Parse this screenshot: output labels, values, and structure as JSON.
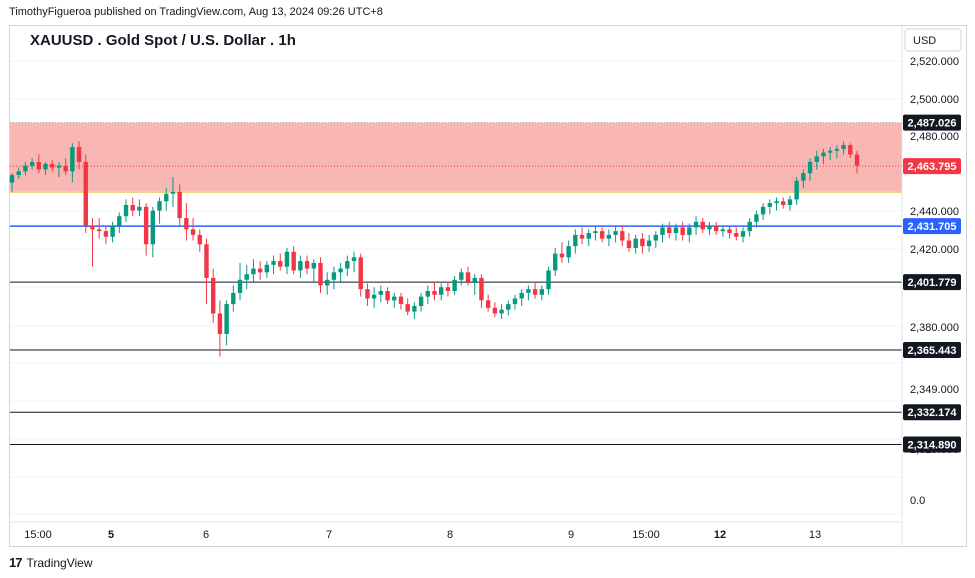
{
  "header": {
    "published_by": "TimothyFigueroa published on TradingView.com, Aug 13, 2024 09:26 UTC+8"
  },
  "footer": {
    "brand": "TradingView",
    "logo_glyph": "17"
  },
  "chart_data": {
    "type": "candlestick",
    "title": "XAUUSD . Gold Spot / U.S. Dollar . 1h",
    "currency": "USD",
    "colors": {
      "up": "#089981",
      "down": "#f23645",
      "zone": "#f7aaa6",
      "blue_line": "#2962ff",
      "black_line": "#131722",
      "yellow_line": "#e8b92a"
    },
    "y_ticks": [
      "2,520.000",
      "2,500.000",
      "2,480.000",
      "2,440.000",
      "2,420.000",
      "2,380.000",
      "2,349.000",
      "2,319.000",
      "0.0"
    ],
    "x_ticks": [
      "15:00",
      "5",
      "6",
      "7",
      "8",
      "9",
      "15:00",
      "12",
      "13"
    ],
    "bold_x_ticks": [
      "5",
      "12"
    ],
    "price_labels": [
      {
        "value": "2,487.026",
        "style": "black"
      },
      {
        "value": "2,463.795",
        "style": "red"
      },
      {
        "value": "2,431.705",
        "style": "blue"
      },
      {
        "value": "2,401.779",
        "style": "black"
      },
      {
        "value": "2,365.443",
        "style": "black"
      },
      {
        "value": "2,332.174",
        "style": "black"
      },
      {
        "value": "2,314.890",
        "style": "black"
      }
    ],
    "zone": {
      "top": 2487.026,
      "bottom": 2450.5
    },
    "last_price": 2463.795,
    "candles": [
      {
        "o": 2455,
        "h": 2460,
        "l": 2450,
        "c": 2459
      },
      {
        "o": 2459,
        "h": 2463,
        "l": 2457,
        "c": 2461
      },
      {
        "o": 2461,
        "h": 2466,
        "l": 2459,
        "c": 2464
      },
      {
        "o": 2464,
        "h": 2468,
        "l": 2462,
        "c": 2466
      },
      {
        "o": 2466,
        "h": 2470,
        "l": 2460,
        "c": 2462
      },
      {
        "o": 2462,
        "h": 2466,
        "l": 2459,
        "c": 2465
      },
      {
        "o": 2465,
        "h": 2467,
        "l": 2461,
        "c": 2463
      },
      {
        "o": 2463,
        "h": 2466,
        "l": 2458,
        "c": 2464
      },
      {
        "o": 2464,
        "h": 2468,
        "l": 2459,
        "c": 2461
      },
      {
        "o": 2461,
        "h": 2476,
        "l": 2455,
        "c": 2474
      },
      {
        "o": 2474,
        "h": 2477,
        "l": 2462,
        "c": 2466
      },
      {
        "o": 2466,
        "h": 2470,
        "l": 2428,
        "c": 2432
      },
      {
        "o": 2432,
        "h": 2436,
        "l": 2410,
        "c": 2430
      },
      {
        "o": 2430,
        "h": 2436,
        "l": 2425,
        "c": 2429
      },
      {
        "o": 2429,
        "h": 2432,
        "l": 2422,
        "c": 2426
      },
      {
        "o": 2426,
        "h": 2434,
        "l": 2423,
        "c": 2432
      },
      {
        "o": 2432,
        "h": 2439,
        "l": 2428,
        "c": 2437
      },
      {
        "o": 2437,
        "h": 2446,
        "l": 2434,
        "c": 2443
      },
      {
        "o": 2443,
        "h": 2447,
        "l": 2437,
        "c": 2440
      },
      {
        "o": 2440,
        "h": 2446,
        "l": 2437,
        "c": 2442
      },
      {
        "o": 2442,
        "h": 2444,
        "l": 2416,
        "c": 2422
      },
      {
        "o": 2422,
        "h": 2442,
        "l": 2415,
        "c": 2440
      },
      {
        "o": 2440,
        "h": 2447,
        "l": 2433,
        "c": 2445
      },
      {
        "o": 2445,
        "h": 2452,
        "l": 2440,
        "c": 2449
      },
      {
        "o": 2449,
        "h": 2458,
        "l": 2442,
        "c": 2450
      },
      {
        "o": 2450,
        "h": 2454,
        "l": 2432,
        "c": 2436
      },
      {
        "o": 2436,
        "h": 2444,
        "l": 2424,
        "c": 2430
      },
      {
        "o": 2430,
        "h": 2436,
        "l": 2424,
        "c": 2427
      },
      {
        "o": 2427,
        "h": 2430,
        "l": 2418,
        "c": 2422
      },
      {
        "o": 2422,
        "h": 2425,
        "l": 2390,
        "c": 2404
      },
      {
        "o": 2404,
        "h": 2409,
        "l": 2380,
        "c": 2385
      },
      {
        "o": 2385,
        "h": 2392,
        "l": 2362,
        "c": 2374
      },
      {
        "o": 2374,
        "h": 2392,
        "l": 2368,
        "c": 2390
      },
      {
        "o": 2390,
        "h": 2400,
        "l": 2386,
        "c": 2396
      },
      {
        "o": 2396,
        "h": 2412,
        "l": 2392,
        "c": 2403
      },
      {
        "o": 2403,
        "h": 2411,
        "l": 2398,
        "c": 2406
      },
      {
        "o": 2406,
        "h": 2414,
        "l": 2402,
        "c": 2409
      },
      {
        "o": 2409,
        "h": 2413,
        "l": 2403,
        "c": 2407
      },
      {
        "o": 2407,
        "h": 2413,
        "l": 2404,
        "c": 2411
      },
      {
        "o": 2411,
        "h": 2416,
        "l": 2406,
        "c": 2413
      },
      {
        "o": 2413,
        "h": 2417,
        "l": 2408,
        "c": 2410
      },
      {
        "o": 2410,
        "h": 2420,
        "l": 2406,
        "c": 2418
      },
      {
        "o": 2418,
        "h": 2421,
        "l": 2406,
        "c": 2408
      },
      {
        "o": 2408,
        "h": 2416,
        "l": 2404,
        "c": 2413
      },
      {
        "o": 2413,
        "h": 2416,
        "l": 2406,
        "c": 2409
      },
      {
        "o": 2409,
        "h": 2414,
        "l": 2402,
        "c": 2412
      },
      {
        "o": 2412,
        "h": 2415,
        "l": 2396,
        "c": 2400
      },
      {
        "o": 2400,
        "h": 2407,
        "l": 2395,
        "c": 2403
      },
      {
        "o": 2403,
        "h": 2410,
        "l": 2398,
        "c": 2407
      },
      {
        "o": 2407,
        "h": 2412,
        "l": 2402,
        "c": 2409
      },
      {
        "o": 2409,
        "h": 2416,
        "l": 2405,
        "c": 2413
      },
      {
        "o": 2413,
        "h": 2418,
        "l": 2407,
        "c": 2415
      },
      {
        "o": 2415,
        "h": 2417,
        "l": 2394,
        "c": 2398
      },
      {
        "o": 2398,
        "h": 2401,
        "l": 2389,
        "c": 2393
      },
      {
        "o": 2393,
        "h": 2399,
        "l": 2388,
        "c": 2395
      },
      {
        "o": 2395,
        "h": 2400,
        "l": 2391,
        "c": 2397
      },
      {
        "o": 2397,
        "h": 2399,
        "l": 2390,
        "c": 2392
      },
      {
        "o": 2392,
        "h": 2396,
        "l": 2388,
        "c": 2394
      },
      {
        "o": 2394,
        "h": 2396,
        "l": 2387,
        "c": 2390
      },
      {
        "o": 2390,
        "h": 2393,
        "l": 2384,
        "c": 2386
      },
      {
        "o": 2386,
        "h": 2391,
        "l": 2382,
        "c": 2389
      },
      {
        "o": 2389,
        "h": 2396,
        "l": 2386,
        "c": 2394
      },
      {
        "o": 2394,
        "h": 2400,
        "l": 2390,
        "c": 2397
      },
      {
        "o": 2397,
        "h": 2402,
        "l": 2392,
        "c": 2395
      },
      {
        "o": 2395,
        "h": 2401,
        "l": 2392,
        "c": 2399
      },
      {
        "o": 2399,
        "h": 2402,
        "l": 2394,
        "c": 2397
      },
      {
        "o": 2397,
        "h": 2405,
        "l": 2395,
        "c": 2403
      },
      {
        "o": 2403,
        "h": 2409,
        "l": 2400,
        "c": 2407
      },
      {
        "o": 2407,
        "h": 2410,
        "l": 2400,
        "c": 2402
      },
      {
        "o": 2402,
        "h": 2406,
        "l": 2395,
        "c": 2404
      },
      {
        "o": 2404,
        "h": 2406,
        "l": 2388,
        "c": 2392
      },
      {
        "o": 2392,
        "h": 2395,
        "l": 2386,
        "c": 2388
      },
      {
        "o": 2388,
        "h": 2391,
        "l": 2383,
        "c": 2385
      },
      {
        "o": 2385,
        "h": 2390,
        "l": 2382,
        "c": 2387
      },
      {
        "o": 2387,
        "h": 2392,
        "l": 2384,
        "c": 2390
      },
      {
        "o": 2390,
        "h": 2395,
        "l": 2387,
        "c": 2393
      },
      {
        "o": 2393,
        "h": 2398,
        "l": 2389,
        "c": 2396
      },
      {
        "o": 2396,
        "h": 2400,
        "l": 2392,
        "c": 2398
      },
      {
        "o": 2398,
        "h": 2402,
        "l": 2393,
        "c": 2395
      },
      {
        "o": 2395,
        "h": 2400,
        "l": 2392,
        "c": 2398
      },
      {
        "o": 2398,
        "h": 2410,
        "l": 2395,
        "c": 2408
      },
      {
        "o": 2408,
        "h": 2420,
        "l": 2405,
        "c": 2417
      },
      {
        "o": 2417,
        "h": 2423,
        "l": 2412,
        "c": 2415
      },
      {
        "o": 2415,
        "h": 2424,
        "l": 2412,
        "c": 2421
      },
      {
        "o": 2421,
        "h": 2430,
        "l": 2417,
        "c": 2427
      },
      {
        "o": 2427,
        "h": 2431,
        "l": 2422,
        "c": 2425
      },
      {
        "o": 2425,
        "h": 2430,
        "l": 2421,
        "c": 2428
      },
      {
        "o": 2428,
        "h": 2432,
        "l": 2424,
        "c": 2429
      },
      {
        "o": 2429,
        "h": 2431,
        "l": 2423,
        "c": 2425
      },
      {
        "o": 2425,
        "h": 2430,
        "l": 2421,
        "c": 2427
      },
      {
        "o": 2427,
        "h": 2432,
        "l": 2423,
        "c": 2429
      },
      {
        "o": 2429,
        "h": 2432,
        "l": 2421,
        "c": 2424
      },
      {
        "o": 2424,
        "h": 2428,
        "l": 2418,
        "c": 2420
      },
      {
        "o": 2420,
        "h": 2427,
        "l": 2417,
        "c": 2425
      },
      {
        "o": 2425,
        "h": 2428,
        "l": 2417,
        "c": 2421
      },
      {
        "o": 2421,
        "h": 2427,
        "l": 2418,
        "c": 2424
      },
      {
        "o": 2424,
        "h": 2429,
        "l": 2420,
        "c": 2427
      },
      {
        "o": 2427,
        "h": 2433,
        "l": 2423,
        "c": 2431
      },
      {
        "o": 2431,
        "h": 2434,
        "l": 2425,
        "c": 2428
      },
      {
        "o": 2428,
        "h": 2433,
        "l": 2424,
        "c": 2431
      },
      {
        "o": 2431,
        "h": 2434,
        "l": 2424,
        "c": 2427
      },
      {
        "o": 2427,
        "h": 2433,
        "l": 2423,
        "c": 2431
      },
      {
        "o": 2431,
        "h": 2437,
        "l": 2427,
        "c": 2434
      },
      {
        "o": 2434,
        "h": 2436,
        "l": 2428,
        "c": 2430
      },
      {
        "o": 2430,
        "h": 2434,
        "l": 2427,
        "c": 2432
      },
      {
        "o": 2432,
        "h": 2434,
        "l": 2427,
        "c": 2429
      },
      {
        "o": 2429,
        "h": 2432,
        "l": 2426,
        "c": 2430
      },
      {
        "o": 2430,
        "h": 2432,
        "l": 2425,
        "c": 2428
      },
      {
        "o": 2428,
        "h": 2431,
        "l": 2424,
        "c": 2426
      },
      {
        "o": 2426,
        "h": 2431,
        "l": 2423,
        "c": 2429
      },
      {
        "o": 2429,
        "h": 2436,
        "l": 2426,
        "c": 2434
      },
      {
        "o": 2434,
        "h": 2440,
        "l": 2431,
        "c": 2438
      },
      {
        "o": 2438,
        "h": 2444,
        "l": 2435,
        "c": 2442
      },
      {
        "o": 2442,
        "h": 2446,
        "l": 2438,
        "c": 2444
      },
      {
        "o": 2444,
        "h": 2447,
        "l": 2440,
        "c": 2445
      },
      {
        "o": 2445,
        "h": 2447,
        "l": 2441,
        "c": 2443
      },
      {
        "o": 2443,
        "h": 2448,
        "l": 2440,
        "c": 2446
      },
      {
        "o": 2446,
        "h": 2458,
        "l": 2443,
        "c": 2456
      },
      {
        "o": 2456,
        "h": 2462,
        "l": 2452,
        "c": 2460
      },
      {
        "o": 2460,
        "h": 2468,
        "l": 2456,
        "c": 2466
      },
      {
        "o": 2466,
        "h": 2472,
        "l": 2462,
        "c": 2469
      },
      {
        "o": 2469,
        "h": 2473,
        "l": 2465,
        "c": 2471
      },
      {
        "o": 2471,
        "h": 2474,
        "l": 2467,
        "c": 2472
      },
      {
        "o": 2472,
        "h": 2475,
        "l": 2468,
        "c": 2473
      },
      {
        "o": 2473,
        "h": 2477,
        "l": 2470,
        "c": 2475
      },
      {
        "o": 2475,
        "h": 2476,
        "l": 2468,
        "c": 2470
      },
      {
        "o": 2470,
        "h": 2472,
        "l": 2460,
        "c": 2464
      }
    ]
  }
}
